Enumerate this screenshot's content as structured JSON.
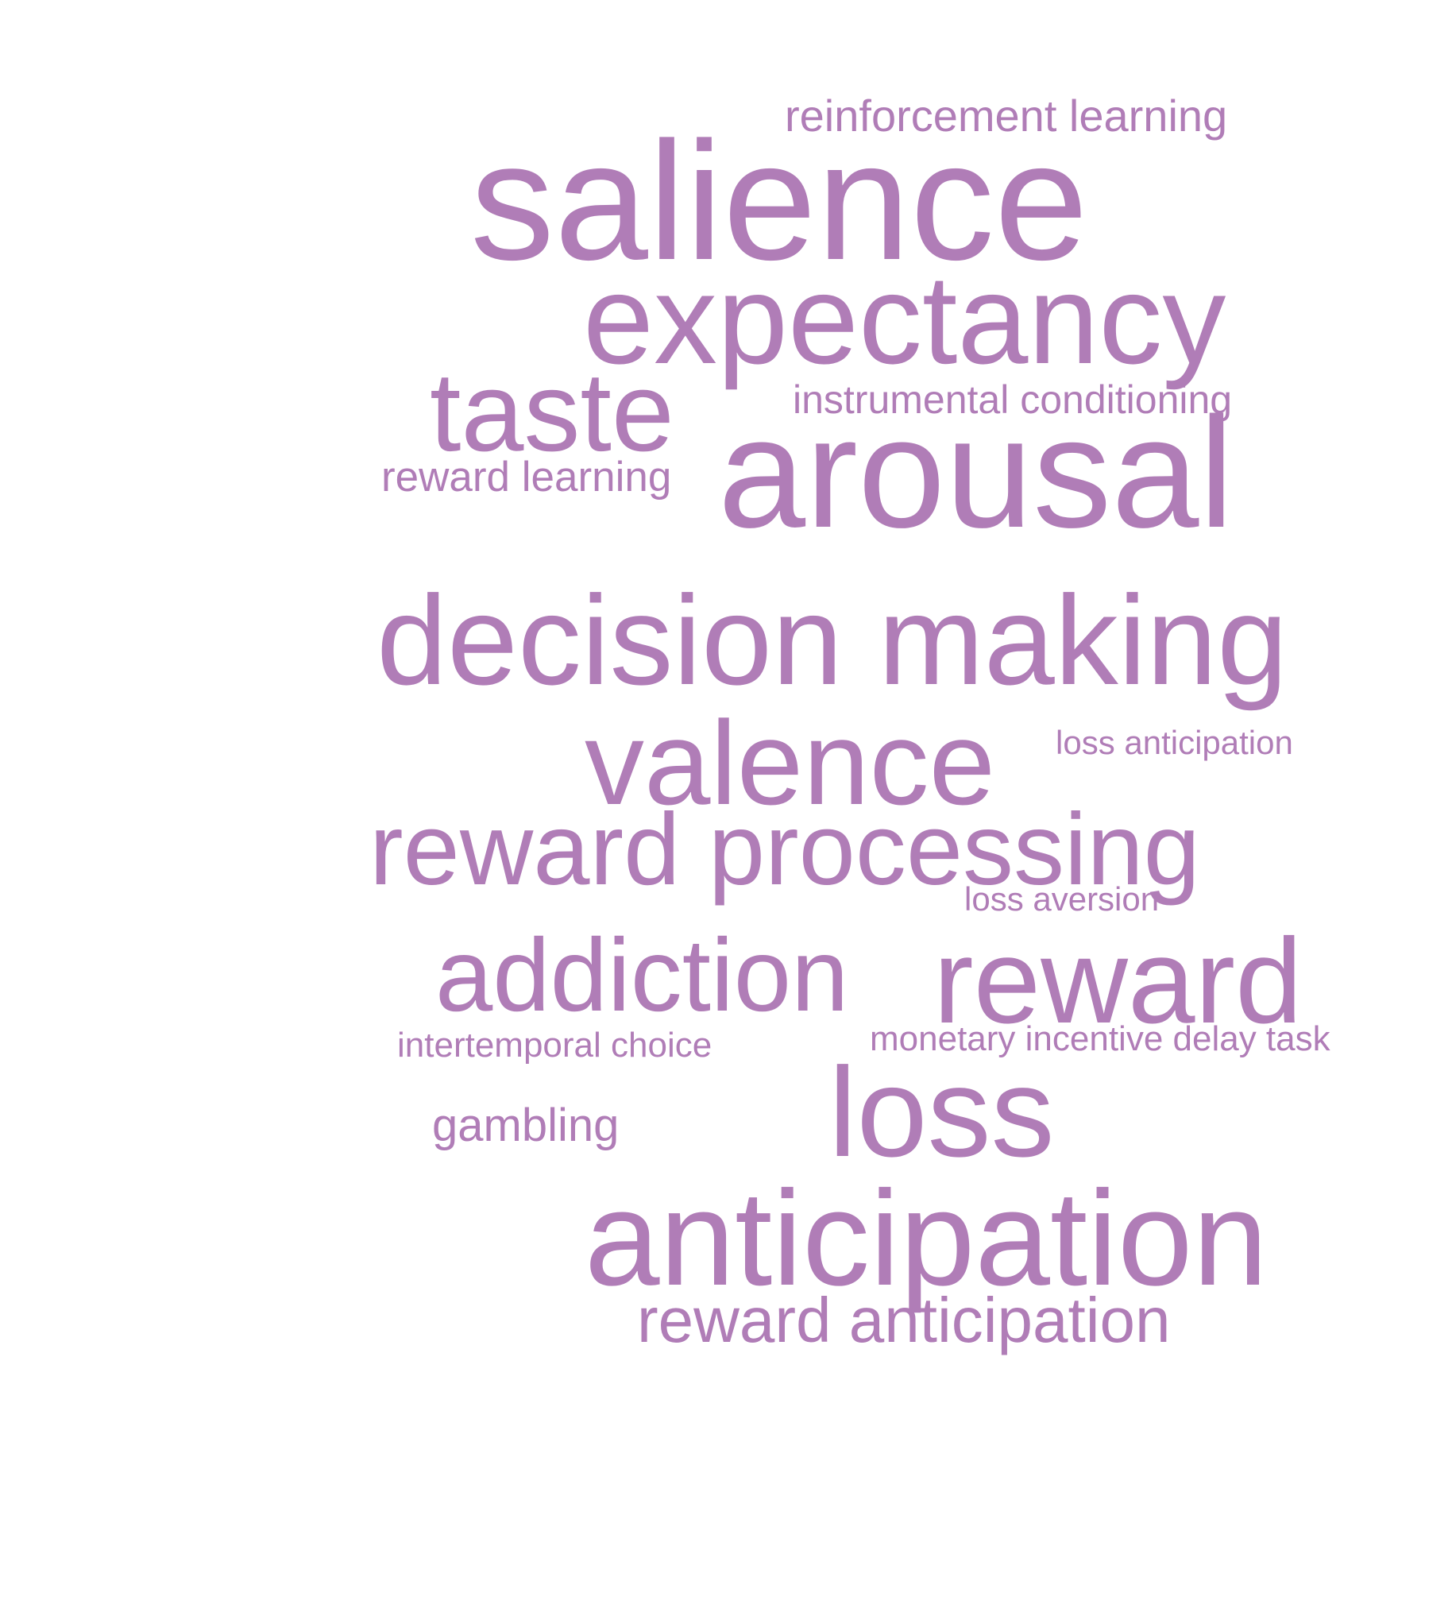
{
  "word_cloud": {
    "color": "#b07db7",
    "words": [
      {
        "id": "reinforcement_learning",
        "text": "reinforcement learning"
      },
      {
        "id": "salience",
        "text": "salience"
      },
      {
        "id": "expectancy",
        "text": "expectancy"
      },
      {
        "id": "taste",
        "text": "taste"
      },
      {
        "id": "instrumental_conditioning",
        "text": "instrumental conditioning"
      },
      {
        "id": "reward_learning",
        "text": "reward learning"
      },
      {
        "id": "arousal",
        "text": "arousal"
      },
      {
        "id": "decision_making",
        "text": "decision making"
      },
      {
        "id": "valence",
        "text": "valence"
      },
      {
        "id": "loss_anticipation",
        "text": "loss anticipation"
      },
      {
        "id": "reward_processing",
        "text": "reward processing"
      },
      {
        "id": "loss_aversion",
        "text": "loss aversion"
      },
      {
        "id": "addiction",
        "text": "addiction"
      },
      {
        "id": "reward",
        "text": "reward"
      },
      {
        "id": "intertemporal_choice",
        "text": "intertemporal choice"
      },
      {
        "id": "monetary_incentive_delay_task",
        "text": "monetary incentive delay task"
      },
      {
        "id": "loss",
        "text": "loss"
      },
      {
        "id": "gambling",
        "text": "gambling"
      },
      {
        "id": "anticipation",
        "text": "anticipation"
      },
      {
        "id": "reward_anticipation",
        "text": "reward anticipation"
      }
    ]
  }
}
